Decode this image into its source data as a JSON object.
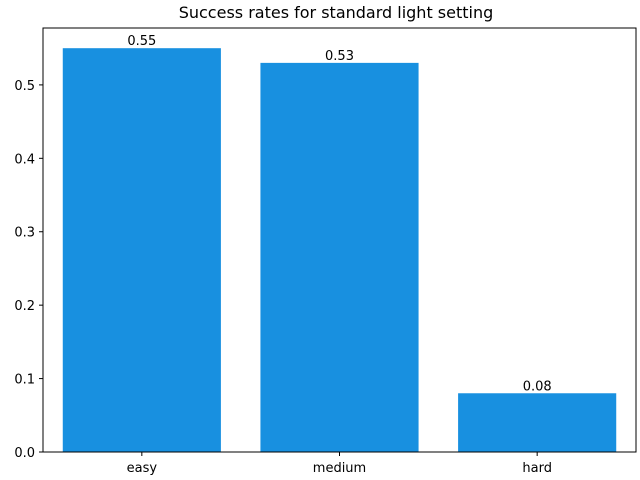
{
  "chart_data": {
    "type": "bar",
    "title": "Success rates for standard light setting",
    "xlabel": "",
    "ylabel": "",
    "categories": [
      "easy",
      "medium",
      "hard"
    ],
    "values": [
      0.55,
      0.53,
      0.08
    ],
    "data_labels": [
      "0.55",
      "0.53",
      "0.08"
    ],
    "y_ticks": [
      0.0,
      0.1,
      0.2,
      0.3,
      0.4,
      0.5
    ],
    "y_tick_labels": [
      "0.0",
      "0.1",
      "0.2",
      "0.3",
      "0.4",
      "0.5"
    ],
    "ylim": [
      0,
      0.5775
    ],
    "grid": false,
    "bar_color": "#1890e0"
  }
}
